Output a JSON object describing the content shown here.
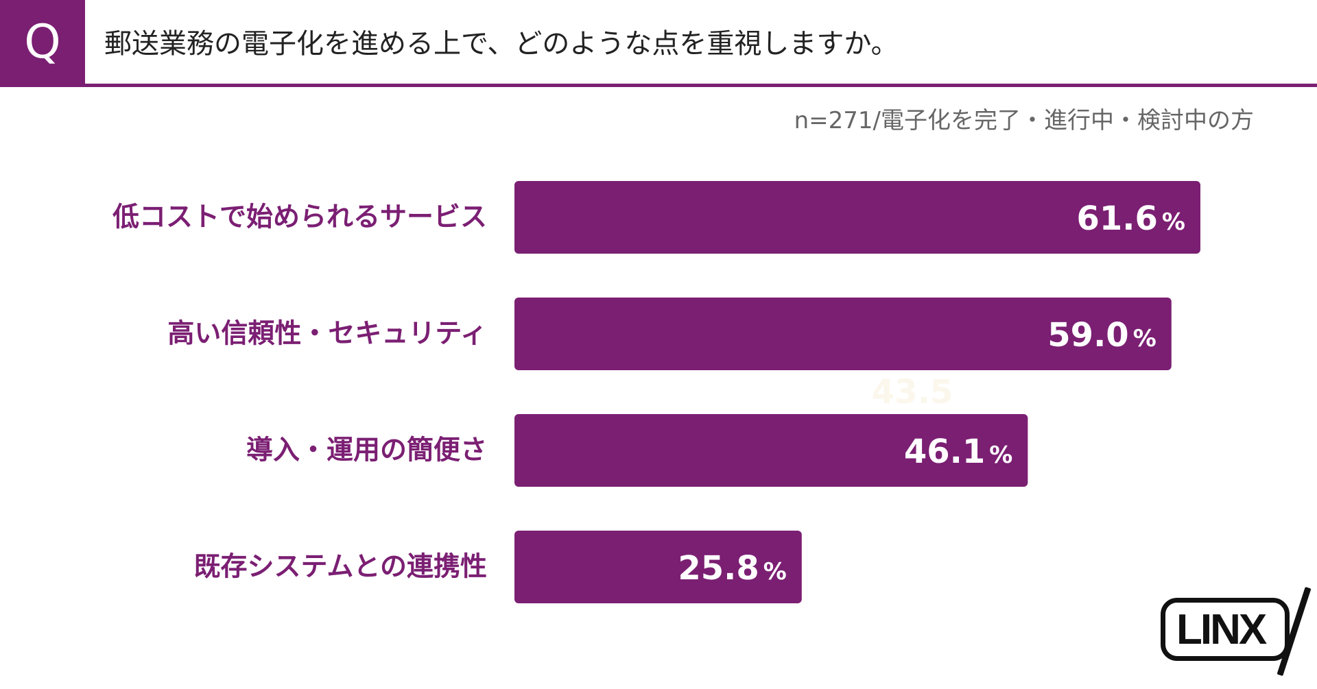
{
  "header": {
    "q_mark": "Q",
    "question": "郵送業務の電子化を進める上で、どのような点を重視しますか。",
    "note": "n=271/電子化を完了・進行中・検討中の方"
  },
  "colors": {
    "accent": "#7b1f73",
    "bar": "#7b1f73",
    "ghost_label": "#fbf7ec"
  },
  "chart_data": {
    "type": "bar",
    "orientation": "horizontal",
    "categories": [
      "低コストで始められるサービス",
      "高い信頼性・セキュリティ",
      "導入・運用の簡便さ",
      "既存システムとの連携性"
    ],
    "values": [
      61.6,
      59.0,
      46.1,
      25.8
    ],
    "value_labels": [
      "61.6",
      "59.0",
      "46.1",
      "25.8"
    ],
    "unit": "%",
    "xlim": [
      0,
      100
    ],
    "grid": false,
    "legend": "none",
    "annotations": [
      "43.5"
    ]
  },
  "logo": {
    "text": "LINX"
  }
}
